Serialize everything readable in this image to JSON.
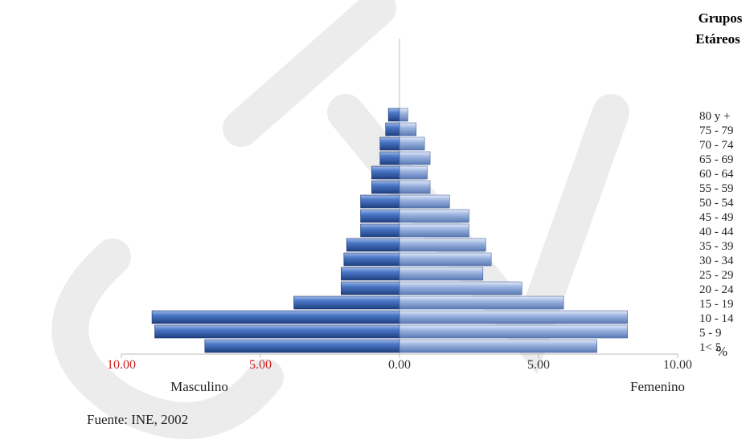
{
  "chart_data": {
    "type": "bar",
    "orientation": "horizontal",
    "subtype": "population-pyramid",
    "legend_title_line1": "Grupos",
    "legend_title_line2": "Etáreos",
    "unit_label": "%",
    "left_label": "Masculino",
    "right_label": "Femenino",
    "source": "Fuente: INE, 2002",
    "xlim": [
      -10,
      10
    ],
    "x_ticks": [
      {
        "value": -10,
        "label": "10.00",
        "color": "#cc2222"
      },
      {
        "value": -5,
        "label": "5.00",
        "color": "#cc2222"
      },
      {
        "value": 0,
        "label": "0.00",
        "color": "#333333"
      },
      {
        "value": 5,
        "label": "5.00",
        "color": "#333333"
      },
      {
        "value": 10,
        "label": "10.00",
        "color": "#333333"
      }
    ],
    "categories": [
      "1< 5",
      "5 - 9",
      "10 - 14",
      "15 - 19",
      "20 - 24",
      "25 - 29",
      "30 - 34",
      "35 - 39",
      "40 - 44",
      "45 - 49",
      "50 - 54",
      "55 - 59",
      "60 - 64",
      "65 - 69",
      "70 - 74",
      "75 - 79",
      "80 y +"
    ],
    "series": [
      {
        "name": "Masculino",
        "color": "#2e5aa8",
        "values": [
          7.0,
          8.8,
          8.9,
          3.8,
          2.1,
          2.1,
          2.0,
          1.9,
          1.4,
          1.4,
          1.4,
          1.0,
          1.0,
          0.7,
          0.7,
          0.5,
          0.4
        ]
      },
      {
        "name": "Femenino",
        "color": "#8ea8d8",
        "values": [
          7.1,
          8.2,
          8.2,
          5.9,
          4.4,
          3.0,
          3.3,
          3.1,
          2.5,
          2.5,
          1.8,
          1.1,
          1.0,
          1.1,
          0.9,
          0.6,
          0.3
        ]
      }
    ],
    "grid": false
  }
}
